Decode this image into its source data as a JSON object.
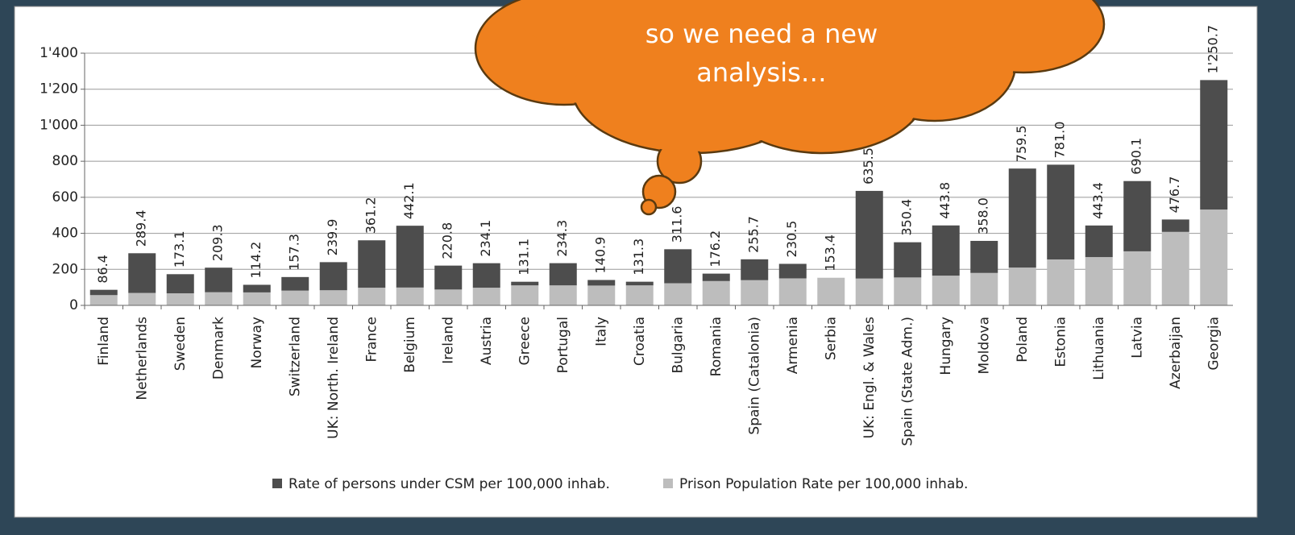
{
  "chart_data": {
    "type": "bar",
    "stacked": true,
    "categories": [
      "Finland",
      "Netherlands",
      "Sweden",
      "Denmark",
      "Norway",
      "Switzerland",
      "UK: North. Ireland",
      "France",
      "Belgium",
      "Ireland",
      "Austria",
      "Greece",
      "Portugal",
      "Italy",
      "Croatia",
      "Bulgaria",
      "Romania",
      "Spain (Catalonia)",
      "Armenia",
      "Serbia",
      "UK: Engl. & Wales",
      "Spain (State Adm.)",
      "Hungary",
      "Moldova",
      "Poland",
      "Estonia",
      "Lithuania",
      "Latvia",
      "Azerbaijan",
      "Georgia"
    ],
    "series": [
      {
        "name": "Prison Population Rate per 100,000 inhab.",
        "color": "#bdbdbd",
        "values": [
          57,
          69,
          67,
          73,
          72,
          82,
          84,
          98,
          99,
          88,
          98,
          111,
          111,
          110,
          111,
          123,
          135,
          140,
          150,
          153.4,
          149,
          155,
          165,
          180,
          210,
          255,
          268,
          300,
          408,
          532
        ]
      },
      {
        "name": "Rate of persons under CSM per 100,000 inhab.",
        "color": "#4d4d4d",
        "values": [
          29.4,
          220.4,
          106.1,
          136.3,
          42.2,
          75.3,
          155.9,
          263.2,
          343.1,
          132.8,
          136.1,
          20.1,
          123.3,
          30.9,
          20.3,
          188.6,
          41.2,
          115.7,
          80.5,
          0,
          486.5,
          195.4,
          278.8,
          178,
          549.5,
          526,
          175.4,
          390.1,
          68.7,
          718.7
        ]
      }
    ],
    "total_labels": [
      "86.4",
      "289.4",
      "173.1",
      "209.3",
      "114.2",
      "157.3",
      "239.9",
      "361.2",
      "442.1",
      "220.8",
      "234.1",
      "131.1",
      "234.3",
      "140.9",
      "131.3",
      "311.6",
      "176.2",
      "255.7",
      "230.5",
      "153.4",
      "635.5",
      "350.4",
      "443.8",
      "358.0",
      "759.5",
      "781.0",
      "443.4",
      "690.1",
      "476.7",
      "1'250.7"
    ],
    "ylim": [
      0,
      1400
    ],
    "yticks": [
      0,
      200,
      400,
      600,
      800,
      {
        "value": 1000,
        "label": "1'000"
      },
      {
        "value": 1200,
        "label": "1'200"
      },
      {
        "value": 1400,
        "label": "1'400"
      }
    ],
    "grid": true
  },
  "callout": {
    "lines": [
      "so we need a new",
      "analysis…"
    ]
  }
}
